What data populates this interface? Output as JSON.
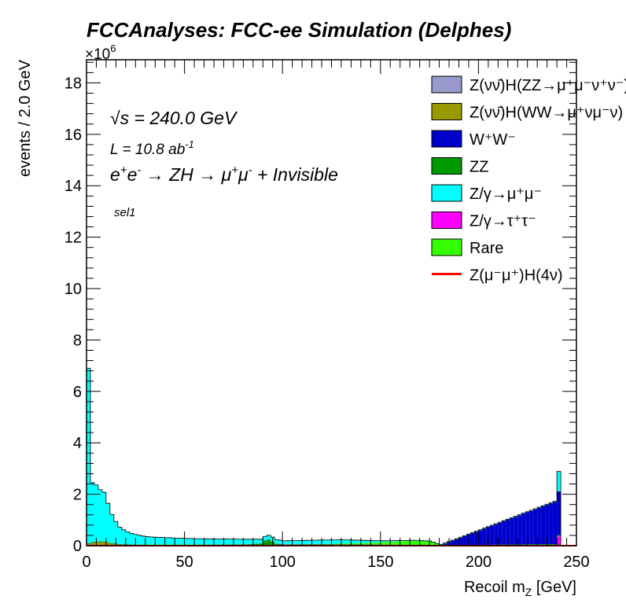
{
  "header": {
    "title": "FCCAnalyses: FCC-ee Simulation (Delphes)",
    "exponent": "×10",
    "exponent_power": "6"
  },
  "annotations": {
    "sqrt_s_root": "√s",
    "energy": " = 240.0 GeV",
    "lumi_prefix": "L = 10.8 ab",
    "lumi_power": "-1",
    "process_1": "e",
    "process_2": "e",
    "process_3": " → ZH → μ",
    "process_4": "μ",
    "process_5": " + Invisible",
    "selection": "sel1"
  },
  "colors": {
    "ZnunuHZZ": "#9999cc",
    "ZnunuHWW": "#999900",
    "WW": "#0000cc",
    "ZZ": "#009900",
    "Zmumu": "#00ffff",
    "Ztautau": "#ff00ff",
    "Rare": "#33ff00",
    "signal": "#ff0000"
  },
  "legend": [
    {
      "key": "ZnunuHZZ",
      "label": "Z(νν̄)H(ZZ→μ⁺μ⁻ν⁺ν⁻)",
      "style": "fill"
    },
    {
      "key": "ZnunuHWW",
      "label": "Z(νν̄)H(WW→μ⁺νμ⁻ν)",
      "style": "fill"
    },
    {
      "key": "WW",
      "label": "W⁺W⁻",
      "style": "fill"
    },
    {
      "key": "ZZ",
      "label": "ZZ",
      "style": "fill"
    },
    {
      "key": "Zmumu",
      "label": "Z/γ→μ⁺μ⁻",
      "style": "fill"
    },
    {
      "key": "Ztautau",
      "label": "Z/γ→τ⁺τ⁻",
      "style": "fill"
    },
    {
      "key": "Rare",
      "label": "Rare",
      "style": "fill"
    },
    {
      "key": "signal",
      "label": "Z(μ⁻μ⁺)H(4ν)",
      "style": "line"
    }
  ],
  "chart_data": {
    "type": "area",
    "stacked": true,
    "title": "FCCAnalyses: FCC-ee Simulation (Delphes)",
    "xlabel": "Recoil m_Z [GeV]",
    "ylabel": "events / 2.0 GeV",
    "xlim": [
      0,
      250
    ],
    "ylim": [
      0,
      18.9
    ],
    "y_multiplier": "×10^6",
    "bin_width": 2.0,
    "xticks": [
      0,
      50,
      100,
      150,
      200,
      250
    ],
    "yticks": [
      0,
      2,
      4,
      6,
      8,
      10,
      12,
      14,
      16,
      18
    ],
    "legend_position": "top-right",
    "grid": false,
    "series": [
      {
        "name": "Z/γ→τ⁺τ⁻",
        "key": "Ztautau",
        "points": [
          [
            0,
            0.04
          ],
          [
            2,
            0.03
          ],
          [
            4,
            0.02
          ],
          [
            6,
            0.02
          ],
          [
            8,
            0.02
          ],
          [
            10,
            0.01
          ],
          [
            14,
            0.01
          ],
          [
            20,
            0.005
          ],
          [
            40,
            0.005
          ],
          [
            80,
            0.005
          ],
          [
            120,
            0.005
          ],
          [
            180,
            0.003
          ],
          [
            238,
            0.002
          ],
          [
            240,
            0.35
          ],
          [
            242,
            0.0
          ]
        ]
      },
      {
        "name": "Z(νν̄)H(WW→μ⁺νμ⁻ν)",
        "key": "ZnunuHWW",
        "points": [
          [
            0,
            0.02
          ],
          [
            2,
            0.08
          ],
          [
            4,
            0.1
          ],
          [
            6,
            0.12
          ],
          [
            8,
            0.12
          ],
          [
            10,
            0.1
          ],
          [
            12,
            0.07
          ],
          [
            14,
            0.05
          ],
          [
            16,
            0.03
          ],
          [
            20,
            0.02
          ],
          [
            30,
            0.01
          ],
          [
            60,
            0.01
          ],
          [
            90,
            0.01
          ],
          [
            120,
            0.01
          ],
          [
            180,
            0.005
          ],
          [
            240,
            0.01
          ],
          [
            242,
            0.0
          ]
        ]
      },
      {
        "name": "ZZ",
        "key": "ZZ",
        "points": [
          [
            0,
            0.02
          ],
          [
            2,
            0.02
          ],
          [
            10,
            0.01
          ],
          [
            40,
            0.01
          ],
          [
            80,
            0.02
          ],
          [
            88,
            0.06
          ],
          [
            90,
            0.18
          ],
          [
            92,
            0.22
          ],
          [
            94,
            0.14
          ],
          [
            96,
            0.05
          ],
          [
            100,
            0.02
          ],
          [
            140,
            0.02
          ],
          [
            180,
            0.01
          ],
          [
            240,
            0.05
          ],
          [
            242,
            0.0
          ]
        ]
      },
      {
        "name": "W⁺W⁻",
        "key": "WW",
        "points": [
          [
            0,
            0.01
          ],
          [
            20,
            0.01
          ],
          [
            60,
            0.01
          ],
          [
            100,
            0.01
          ],
          [
            140,
            0.01
          ],
          [
            180,
            0.005
          ],
          [
            240,
            1.7
          ],
          [
            242,
            0.0
          ]
        ]
      },
      {
        "name": "Rare",
        "key": "Rare",
        "points": [
          [
            0,
            0.01
          ],
          [
            40,
            0.01
          ],
          [
            100,
            0.01
          ],
          [
            120,
            0.02
          ],
          [
            140,
            0.06
          ],
          [
            150,
            0.1
          ],
          [
            160,
            0.14
          ],
          [
            166,
            0.16
          ],
          [
            170,
            0.16
          ],
          [
            174,
            0.14
          ],
          [
            176,
            0.1
          ],
          [
            178,
            0.05
          ],
          [
            180,
            0.02
          ],
          [
            186,
            0.01
          ],
          [
            240,
            0.02
          ],
          [
            242,
            0.0
          ]
        ]
      },
      {
        "name": "Z/γ→μ⁺μ⁻",
        "key": "Zmumu",
        "points": [
          [
            0,
            6.8
          ],
          [
            2,
            2.3
          ],
          [
            4,
            2.2
          ],
          [
            6,
            2.0
          ],
          [
            8,
            1.9
          ],
          [
            10,
            1.5
          ],
          [
            12,
            1.1
          ],
          [
            14,
            0.85
          ],
          [
            16,
            0.65
          ],
          [
            18,
            0.55
          ],
          [
            20,
            0.48
          ],
          [
            22,
            0.42
          ],
          [
            24,
            0.38
          ],
          [
            26,
            0.35
          ],
          [
            28,
            0.32
          ],
          [
            30,
            0.3
          ],
          [
            34,
            0.28
          ],
          [
            40,
            0.26
          ],
          [
            50,
            0.23
          ],
          [
            60,
            0.21
          ],
          [
            70,
            0.2
          ],
          [
            80,
            0.19
          ],
          [
            90,
            0.14
          ],
          [
            94,
            0.15
          ],
          [
            100,
            0.13
          ],
          [
            110,
            0.14
          ],
          [
            120,
            0.15
          ],
          [
            130,
            0.14
          ],
          [
            140,
            0.1
          ],
          [
            150,
            0.05
          ],
          [
            160,
            0.02
          ],
          [
            170,
            0.01
          ],
          [
            180,
            0.005
          ],
          [
            238,
            0.0
          ],
          [
            240,
            0.75
          ],
          [
            242,
            0.0
          ]
        ]
      },
      {
        "name": "Z(νν̄)H(ZZ→μ⁺μ⁻ν⁺ν⁻)",
        "key": "ZnunuHZZ",
        "points": [
          [
            0,
            0.005
          ],
          [
            240,
            0.005
          ],
          [
            242,
            0.0
          ]
        ]
      }
    ],
    "signal_line": {
      "name": "Z(μ⁻μ⁺)H(4ν)",
      "key": "signal",
      "points": [
        [
          0,
          0.0
        ],
        [
          124,
          0.003
        ],
        [
          126,
          0.01
        ],
        [
          130,
          0.003
        ],
        [
          250,
          0.0
        ]
      ]
    }
  }
}
